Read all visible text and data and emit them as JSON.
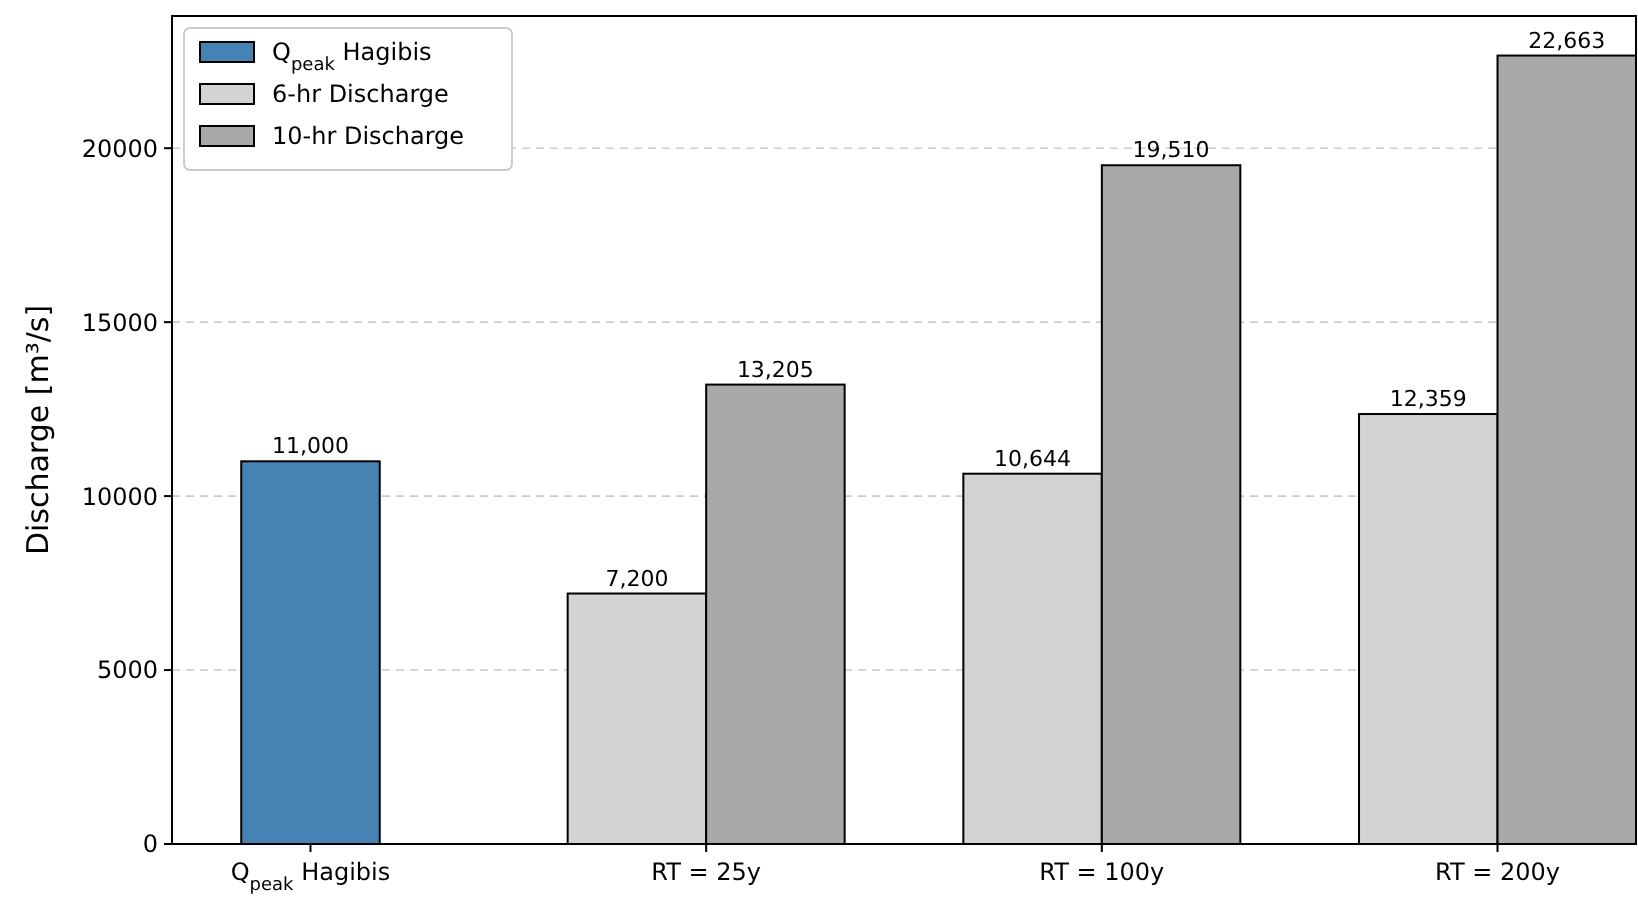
{
  "chart_data": {
    "type": "bar",
    "ylabel": "Discharge [m³/s]",
    "categories": [
      "Q$_{peak}$ Hagibis",
      "RT = 25y",
      "RT = 100y",
      "RT = 200y"
    ],
    "series": [
      {
        "name": "Q$_{peak}$ Hagibis",
        "color": "#4682b4",
        "values": [
          11000,
          null,
          null,
          null
        ],
        "value_labels": [
          "11,000",
          null,
          null,
          null
        ]
      },
      {
        "name": "6-hr Discharge",
        "color": "#d3d3d3",
        "values": [
          null,
          7200,
          10644,
          12359
        ],
        "value_labels": [
          null,
          "7,200",
          "10,644",
          "12,359"
        ]
      },
      {
        "name": "10-hr Discharge",
        "color": "#a9a9a9",
        "values": [
          null,
          13205,
          19510,
          22663
        ],
        "value_labels": [
          null,
          "13,205",
          "19,510",
          "22,663"
        ]
      }
    ],
    "ylim": [
      0,
      23800
    ],
    "yticks": [
      0,
      5000,
      10000,
      15000,
      20000
    ],
    "grid": "y",
    "legend": "top left"
  }
}
